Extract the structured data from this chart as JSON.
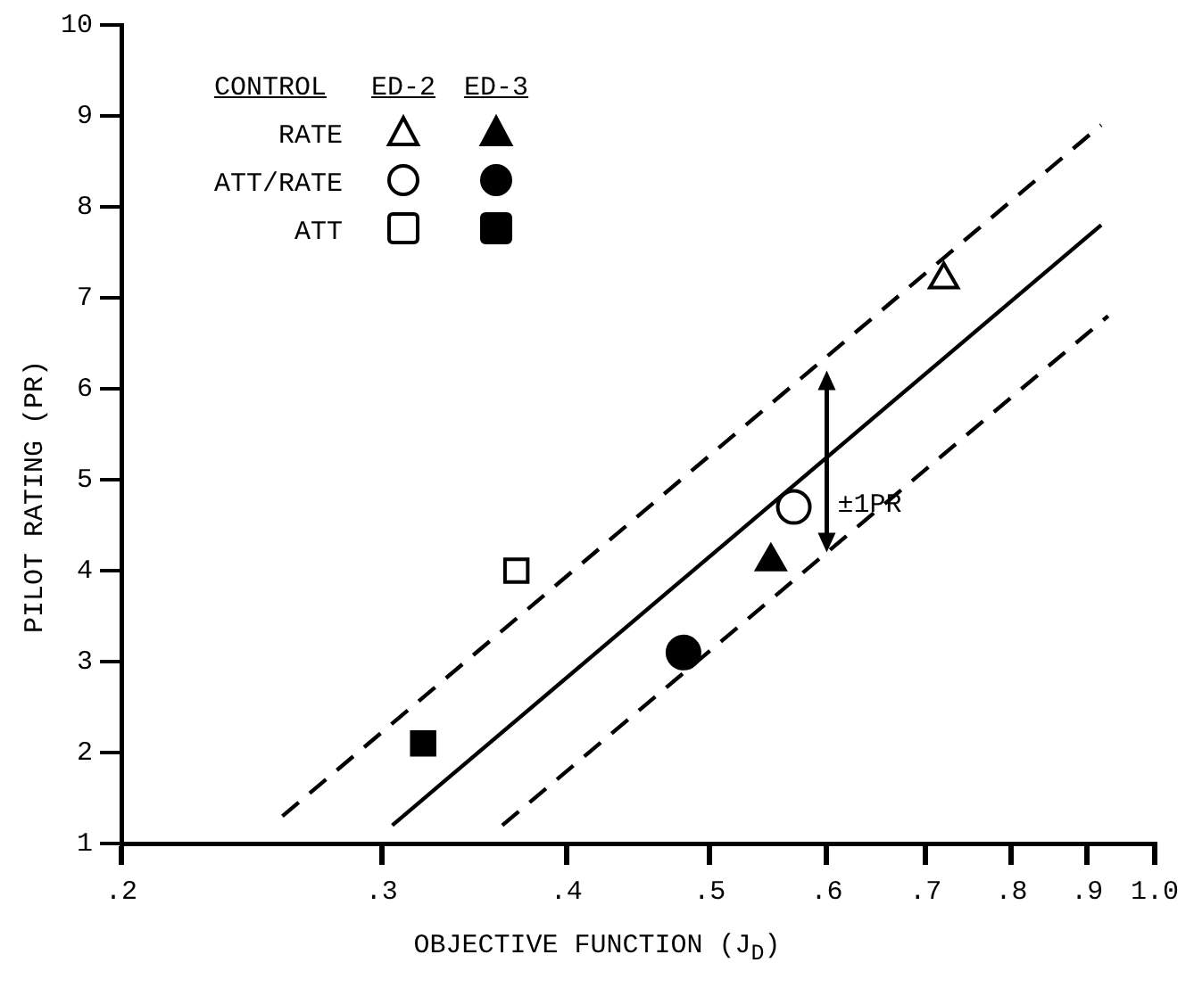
{
  "chart_data": {
    "type": "scatter",
    "xlabel": "OBJECTIVE FUNCTION (J$_{D}$)",
    "ylabel": "PILOT RATING (PR)",
    "legend_title": "CONTROL",
    "log": "x",
    "grid": false,
    "legend": "top left",
    "xlim": [
      0.2,
      1.0
    ],
    "xticks": [
      {
        "value": 0.2,
        "label": ".2"
      },
      {
        "value": 0.3,
        "label": ".3"
      },
      {
        "value": 0.4,
        "label": ".4"
      },
      {
        "value": 0.5,
        "label": ".5"
      },
      {
        "value": 0.6,
        "label": ".6"
      },
      {
        "value": 0.7,
        "label": ".7"
      },
      {
        "value": 0.8,
        "label": ".8"
      },
      {
        "value": 0.9,
        "label": ".9"
      },
      {
        "value": 1.0,
        "label": "1.0"
      }
    ],
    "ylim": [
      1,
      10
    ],
    "yticks": [
      1,
      2,
      3,
      4,
      5,
      6,
      7,
      8,
      9,
      10
    ],
    "annotations": [
      "ED-2",
      "ED-3",
      {
        "text": "±1PR",
        "x": 0.6,
        "y": 5.2
      }
    ],
    "series": [
      {
        "name": "RATE",
        "marker": "triangle",
        "color": "#000000",
        "x": [
          0.72
        ],
        "values": [
          7.2
        ]
      },
      {
        "name": "ATT/RATE",
        "marker": "circle",
        "color": "#000000",
        "x": [
          0.57
        ],
        "values": [
          4.7
        ]
      },
      {
        "name": "ATT",
        "marker": "square",
        "color": "#000000",
        "x": [
          0.37
        ],
        "values": [
          4.0
        ]
      },
      {
        "marker": "triangle",
        "color": "#000000",
        "x": [
          0.55
        ],
        "values": [
          4.1
        ]
      },
      {
        "marker": "circle",
        "color": "#000000",
        "x": [
          0.48
        ],
        "values": [
          3.1
        ]
      },
      {
        "marker": "square",
        "color": "#000000",
        "x": [
          0.32
        ],
        "values": [
          2.1
        ]
      },
      {
        "type": "line",
        "marker": "none",
        "line_style": "solid",
        "color": "#000000",
        "x": [
          0.305,
          0.92
        ],
        "values": [
          1.2,
          7.8
        ]
      },
      {
        "type": "line",
        "marker": "none",
        "line_style": "dashed",
        "color": "#000000",
        "x": [
          0.257,
          0.92
        ],
        "values": [
          1.3,
          8.9
        ]
      },
      {
        "type": "line",
        "marker": "none",
        "line_style": "dashed",
        "color": "#000000",
        "x": [
          0.362,
          0.93
        ],
        "values": [
          1.2,
          6.8
        ]
      }
    ]
  }
}
